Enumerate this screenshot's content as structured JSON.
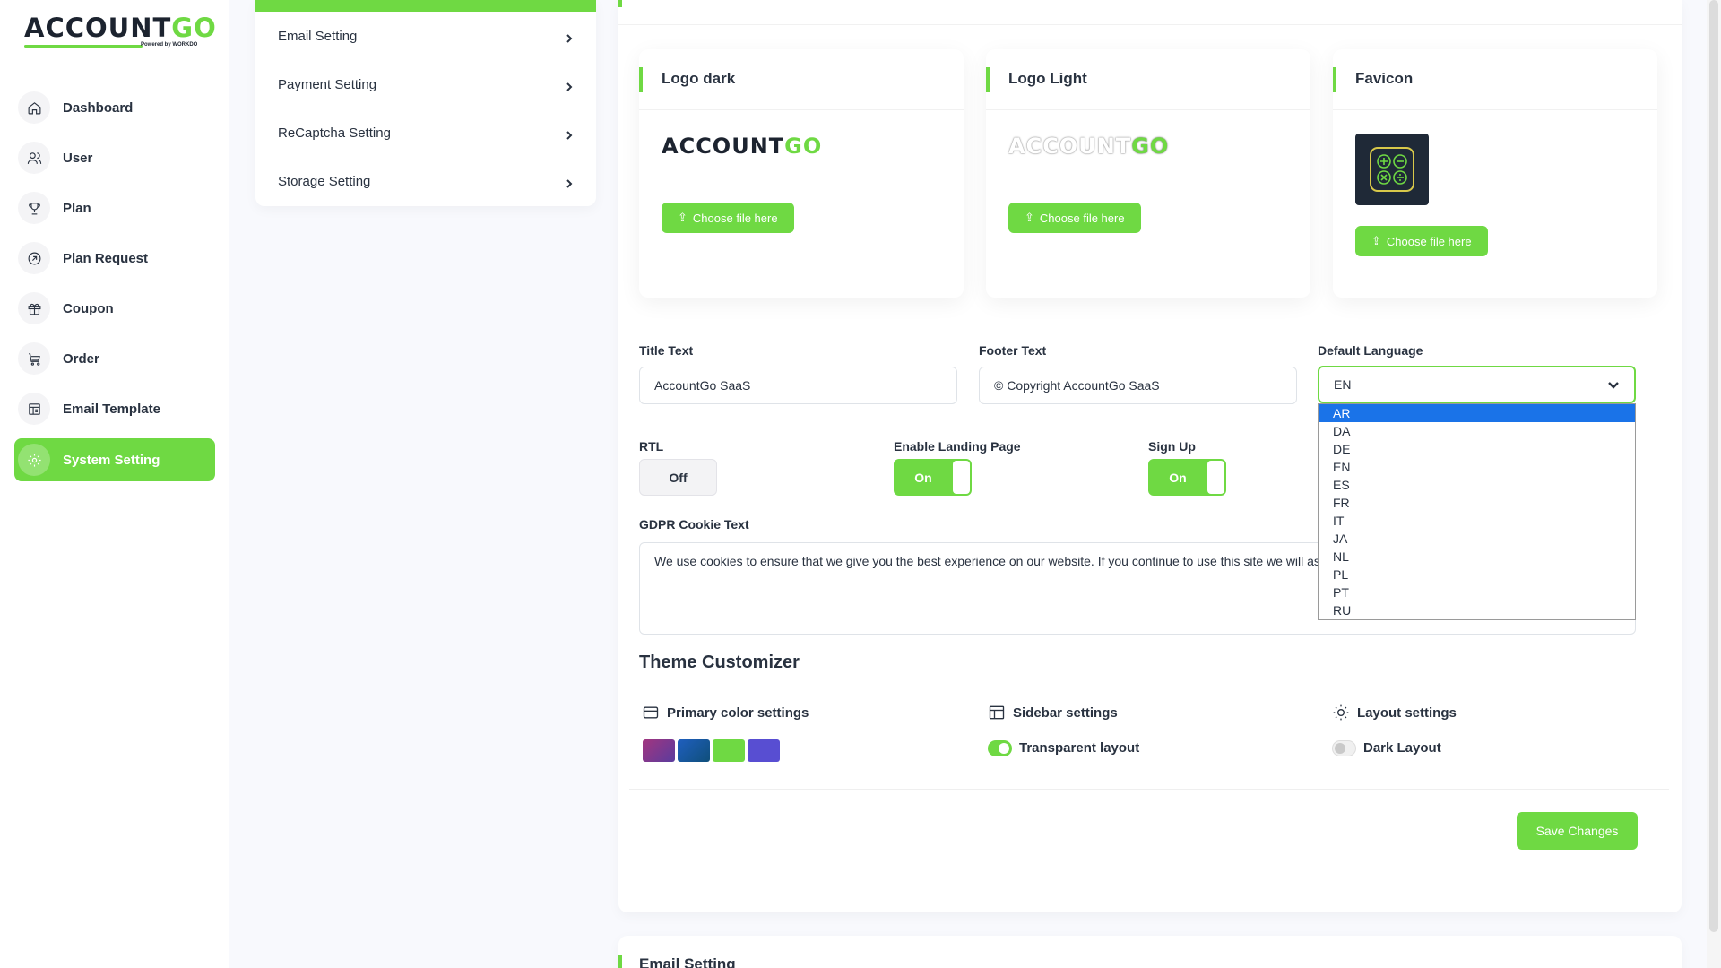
{
  "brand": {
    "logo_main": "ACCOUNT",
    "logo_accent": "GO",
    "logo_sub": "Powered by WORKDO"
  },
  "sidebar": {
    "items": [
      {
        "label": "Dashboard",
        "icon": "home-icon"
      },
      {
        "label": "User",
        "icon": "users-icon"
      },
      {
        "label": "Plan",
        "icon": "trophy-icon"
      },
      {
        "label": "Plan Request",
        "icon": "arrow-circle-icon"
      },
      {
        "label": "Coupon",
        "icon": "gift-icon"
      },
      {
        "label": "Order",
        "icon": "cart-icon"
      },
      {
        "label": "Email Template",
        "icon": "template-icon"
      },
      {
        "label": "System Setting",
        "icon": "gear-icon",
        "active": true
      }
    ]
  },
  "settings_nav": {
    "items": [
      {
        "label": "Email Setting"
      },
      {
        "label": "Payment Setting"
      },
      {
        "label": "ReCaptcha Setting"
      },
      {
        "label": "Storage Setting"
      }
    ]
  },
  "logos": {
    "dark": {
      "title": "Logo dark",
      "button": "Choose file here"
    },
    "light": {
      "title": "Logo Light",
      "button": "Choose file here"
    },
    "favicon": {
      "title": "Favicon",
      "button": "Choose file here"
    }
  },
  "form": {
    "title_text": {
      "label": "Title Text",
      "value": "AccountGo SaaS"
    },
    "footer_text": {
      "label": "Footer Text",
      "value": "© Copyright AccountGo SaaS"
    },
    "default_language": {
      "label": "Default Language",
      "value": "EN",
      "options": [
        "AR",
        "DA",
        "DE",
        "EN",
        "ES",
        "FR",
        "IT",
        "JA",
        "NL",
        "PL",
        "PT",
        "RU"
      ],
      "highlighted": "AR"
    },
    "rtl": {
      "label": "RTL",
      "state": "Off"
    },
    "landing_page": {
      "label": "Enable Landing Page",
      "state": "On"
    },
    "sign_up": {
      "label": "Sign Up",
      "state": "On"
    },
    "gdpr": {
      "label": "GDPR Cookie Text",
      "value": "We use cookies to ensure that we give you the best experience on our website. If you continue to use this site we will assume that you are happy with it."
    }
  },
  "theme": {
    "title": "Theme Customizer",
    "primary": {
      "label": "Primary color settings",
      "swatches": [
        "#8a3e8f",
        "#1c5aa8",
        "#6fd943",
        "#584ed2"
      ]
    },
    "sidebar": {
      "label": "Sidebar settings",
      "toggle_label": "Transparent layout",
      "on": true
    },
    "layout": {
      "label": "Layout settings",
      "toggle_label": "Dark Layout",
      "on": false
    }
  },
  "actions": {
    "save": "Save Changes"
  },
  "next_section": {
    "title": "Email Setting"
  },
  "colors": {
    "accent": "#6fd943",
    "text": "#293240",
    "dropdown_highlight": "#1a73e8"
  }
}
